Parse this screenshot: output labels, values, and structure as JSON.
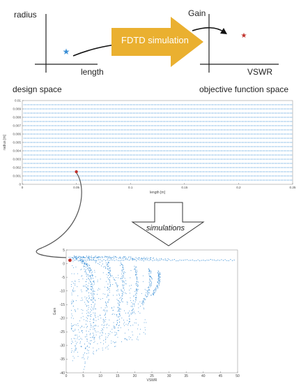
{
  "top": {
    "design_space": {
      "y_label": "radius",
      "x_label": "length",
      "caption": "design space",
      "marker_color": "#3a8fd6"
    },
    "process": {
      "label": "FDTD simulation",
      "arrow_color": "#eab030"
    },
    "objective_space": {
      "y_label": "Gain",
      "x_label": "VSWR",
      "caption": "objective function space",
      "marker_color": "#c0302a"
    }
  },
  "middle_down_arrow": {
    "label": "simulations"
  },
  "chart_data": [
    {
      "type": "scatter",
      "title": "",
      "xlabel": "length [m]",
      "ylabel": "radius [m]",
      "xlim": [
        0,
        0.25
      ],
      "ylim": [
        0,
        0.01
      ],
      "x_ticks": [
        "0",
        "0.05",
        "0.1",
        "0.15",
        "0.2",
        "0.25"
      ],
      "y_ticks": [
        "0",
        "0.001",
        "0.002",
        "0.003",
        "0.004",
        "0.005",
        "0.006",
        "0.007",
        "0.008",
        "0.009",
        "0.01"
      ],
      "grid_rows_radius": [
        0.0005,
        0.001,
        0.0015,
        0.002,
        0.0025,
        0.003,
        0.0035,
        0.004,
        0.0045,
        0.005,
        0.0055,
        0.006,
        0.0065,
        0.007,
        0.0075,
        0.008,
        0.0085,
        0.009,
        0.0095
      ],
      "length_range": [
        0.001,
        0.25
      ],
      "highlight_point": {
        "x": 0.05,
        "y": 0.0015
      },
      "point_color": "#3a8fd6",
      "highlight_color": "#c0302a"
    },
    {
      "type": "scatter",
      "title": "",
      "xlabel": "VSWR",
      "ylabel": "Gain",
      "xlim": [
        0,
        50
      ],
      "ylim": [
        -40,
        5
      ],
      "x_ticks": [
        "0",
        "5",
        "10",
        "15",
        "20",
        "25",
        "30",
        "35",
        "40",
        "45",
        "50"
      ],
      "y_ticks": [
        "5",
        "0",
        "-5",
        "-10",
        "-15",
        "-20",
        "-25",
        "-30",
        "-35",
        "-40"
      ],
      "curves": [
        {
          "start": [
            1.2,
            2.0
          ],
          "peak": [
            8,
            3.0
          ],
          "end": [
            30,
            1.5
          ]
        },
        {
          "start": [
            1.5,
            2.2
          ],
          "peak": [
            12,
            2.8
          ],
          "end": [
            25,
            1.5
          ]
        },
        {
          "start": [
            2.0,
            2.5
          ],
          "peak": [
            18,
            2.5
          ],
          "end": [
            15,
            -25
          ]
        },
        {
          "start": [
            3.0,
            1.8
          ],
          "peak": [
            10,
            1.0
          ],
          "end": [
            6,
            -35
          ]
        },
        {
          "start": [
            4.0,
            1.5
          ],
          "peak": [
            8,
            0
          ],
          "end": [
            5,
            -39
          ]
        },
        {
          "start": [
            6.0,
            0.5
          ],
          "peak": [
            9,
            -5
          ],
          "end": [
            8,
            -28
          ]
        },
        {
          "start": [
            12,
            0.5
          ],
          "peak": [
            14,
            -4
          ],
          "end": [
            10,
            -27
          ]
        },
        {
          "start": [
            16,
            0
          ],
          "peak": [
            18,
            -6
          ],
          "end": [
            14,
            -24
          ]
        },
        {
          "start": [
            20,
            -1
          ],
          "peak": [
            22,
            -8
          ],
          "end": [
            18,
            -22
          ]
        },
        {
          "start": [
            24,
            -2
          ],
          "peak": [
            26,
            -7
          ],
          "end": [
            22,
            -15
          ]
        },
        {
          "start": [
            27,
            -3
          ],
          "peak": [
            28,
            -6
          ],
          "end": [
            25,
            -12
          ]
        }
      ],
      "tail": {
        "from": [
          2,
          1.2
        ],
        "to": [
          49,
          1.3
        ]
      },
      "highlight_point": {
        "x": 1.1,
        "y": 1.2
      },
      "point_color": "#3a8fd6",
      "highlight_color": "#c0302a"
    }
  ]
}
